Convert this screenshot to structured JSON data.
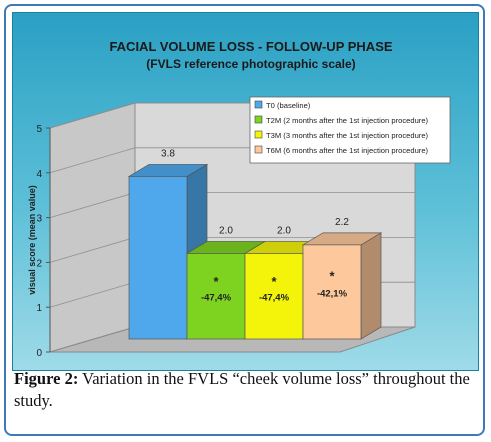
{
  "chart_data": {
    "type": "bar",
    "title": "FACIAL VOLUME LOSS - FOLLOW-UP PHASE",
    "subtitle": "(FVLS reference photographic scale)",
    "ylabel": "visual score (mean value)",
    "ylim": [
      0,
      5
    ],
    "yticks": [
      "0",
      "1",
      "2",
      "3",
      "4",
      "5"
    ],
    "categories": [
      "T0 (baseline)",
      "T2M (2 months after the 1st injection procedure)",
      "T3M (3 months after the 1st injection procedure)",
      "T6M (6 months after the 1st injection procedure)"
    ],
    "values": [
      3.8,
      2.0,
      2.0,
      2.2
    ],
    "value_labels": [
      "3.8",
      "2.0",
      "2.0",
      "2.2"
    ],
    "change_labels": [
      "",
      "-47,4%",
      "-47,4%",
      "-42,1%"
    ],
    "significance": [
      "",
      "*",
      "*",
      "*"
    ],
    "colors": [
      "#4fa8ec",
      "#7ed321",
      "#f4f40a",
      "#fcc89c"
    ],
    "legend_position": "top-right",
    "grid": true
  },
  "caption": {
    "label": "Figure 2:",
    "text": "Variation in the FVLS “cheek volume loss” throughout the study."
  }
}
